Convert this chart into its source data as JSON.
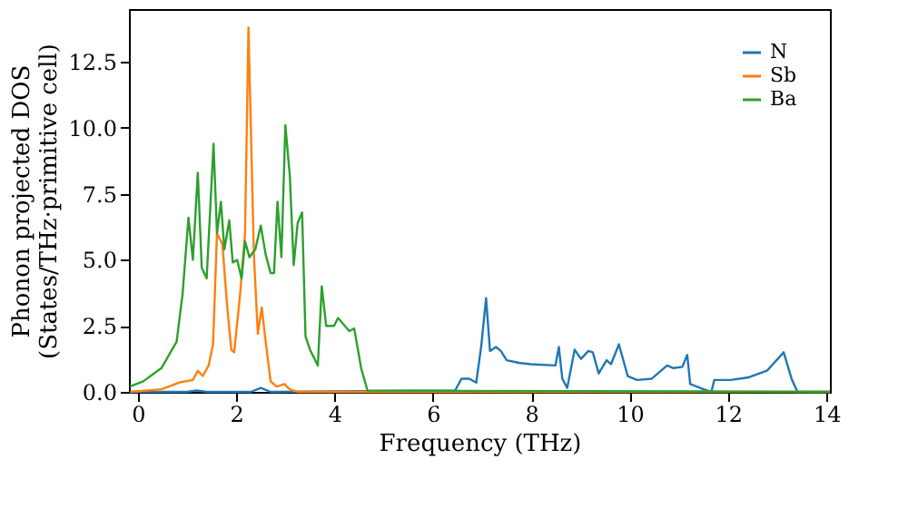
{
  "chart_data": {
    "type": "line",
    "xlabel": "Frequency (THz)",
    "ylabel": "Phonon projected DOS\n(States/THz·primitive cell)",
    "xlim": [
      -0.18,
      14.07
    ],
    "ylim": [
      0,
      14.5
    ],
    "xticks": [
      0,
      2,
      4,
      6,
      8,
      10,
      12,
      14
    ],
    "yticks": [
      {
        "value": 0,
        "label": "0.0"
      },
      {
        "value": 2.5,
        "label": "2.5"
      },
      {
        "value": 5,
        "label": "5.0"
      },
      {
        "value": 7.5,
        "label": "7.5"
      },
      {
        "value": 10,
        "label": "10.0"
      },
      {
        "value": 12.5,
        "label": "12.5"
      }
    ],
    "grid": false,
    "legend": "top right",
    "line_style": "solid",
    "marker": "none",
    "series": [
      {
        "name": "N",
        "color": "#1f77b4",
        "x": [
          -0.16,
          1.0,
          1.2,
          1.4,
          2.3,
          2.5,
          2.7,
          6.45,
          6.58,
          6.74,
          6.88,
          6.98,
          7.08,
          7.16,
          7.28,
          7.38,
          7.5,
          7.75,
          7.99,
          8.49,
          8.56,
          8.63,
          8.73,
          8.88,
          9.01,
          9.16,
          9.25,
          9.37,
          9.53,
          9.62,
          9.78,
          9.96,
          10.15,
          10.45,
          10.76,
          10.89,
          11.07,
          11.17,
          11.23,
          11.5,
          11.66,
          11.72,
          12.05,
          12.42,
          12.79,
          13.13,
          13.29,
          13.41,
          14.07
        ],
        "values": [
          0,
          0,
          0.05,
          0,
          0,
          0.15,
          0,
          0.05,
          0.5,
          0.5,
          0.35,
          1.7,
          3.55,
          1.55,
          1.7,
          1.55,
          1.2,
          1.1,
          1.05,
          1.0,
          1.7,
          0.5,
          0.15,
          1.6,
          1.25,
          1.55,
          1.5,
          0.7,
          1.2,
          1.05,
          1.8,
          0.6,
          0.45,
          0.5,
          1.0,
          0.9,
          0.95,
          1.4,
          0.3,
          0.1,
          0,
          0.45,
          0.45,
          0.55,
          0.8,
          1.5,
          0.5,
          0,
          0
        ]
      },
      {
        "name": "Sb",
        "color": "#ff7f0e",
        "x": [
          -0.15,
          0.48,
          0.85,
          1.12,
          1.22,
          1.32,
          1.44,
          1.53,
          1.61,
          1.72,
          1.81,
          1.9,
          1.96,
          2.08,
          2.18,
          2.25,
          2.36,
          2.44,
          2.52,
          2.6,
          2.7,
          2.82,
          2.98,
          3.09,
          3.25,
          14.07
        ],
        "values": [
          0,
          0.1,
          0.36,
          0.45,
          0.8,
          0.6,
          1.0,
          1.8,
          6.0,
          5.6,
          3.4,
          1.6,
          1.5,
          3.7,
          6.0,
          13.8,
          5.2,
          2.2,
          3.2,
          1.9,
          0.4,
          0.2,
          0.3,
          0.1,
          0,
          0
        ]
      },
      {
        "name": "Ba",
        "color": "#2ca02c",
        "x": [
          -0.16,
          0.11,
          0.48,
          0.79,
          0.91,
          1.03,
          1.12,
          1.22,
          1.3,
          1.4,
          1.54,
          1.61,
          1.69,
          1.76,
          1.86,
          1.93,
          2.02,
          2.11,
          2.18,
          2.27,
          2.39,
          2.5,
          2.6,
          2.7,
          2.77,
          2.84,
          2.92,
          3.0,
          3.09,
          3.17,
          3.25,
          3.34,
          3.41,
          3.5,
          3.66,
          3.74,
          3.83,
          3.99,
          4.07,
          4.3,
          4.4,
          4.54,
          4.67,
          14.07
        ],
        "values": [
          0.2,
          0.4,
          0.9,
          1.9,
          3.7,
          6.6,
          5.0,
          8.3,
          4.7,
          4.3,
          9.4,
          6.0,
          7.2,
          5.4,
          6.5,
          4.9,
          5.0,
          4.3,
          5.7,
          5.1,
          5.4,
          6.3,
          5.2,
          4.5,
          4.5,
          7.2,
          5.1,
          10.1,
          8.2,
          4.8,
          6.4,
          6.8,
          2.1,
          1.6,
          1.0,
          4.0,
          2.5,
          2.5,
          2.8,
          2.3,
          2.4,
          0.9,
          0.05,
          0
        ]
      }
    ]
  }
}
